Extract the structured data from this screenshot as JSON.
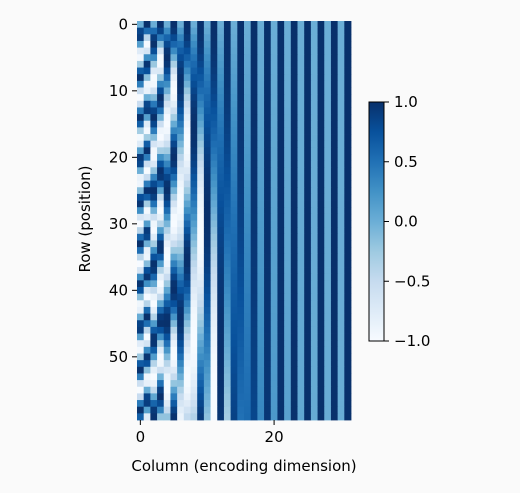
{
  "chart_data": {
    "type": "heatmap",
    "title": "",
    "xlabel": "Column (encoding dimension)",
    "ylabel": "Row (position)",
    "rows": 60,
    "cols": 32,
    "encoding": "sinusoidal positional encoding: even column 2i = sin(row / 10000^(2i/32)), odd column 2i+1 = cos(row / 10000^(2i/32))",
    "xticks": [
      0,
      20
    ],
    "yticks": [
      0,
      10,
      20,
      30,
      40,
      50
    ],
    "colormap": "Blues",
    "value_range": [
      -1.0,
      1.0
    ],
    "colorbar_ticks": [
      "1.0",
      "0.5",
      "0.0",
      "−0.5",
      "−1.0"
    ],
    "colorbar_tick_values": [
      1.0,
      0.5,
      0.0,
      -0.5,
      -1.0
    ],
    "colors": {
      "low": "#f7fbff",
      "high": "#08306b",
      "background": "#fafafa"
    }
  }
}
